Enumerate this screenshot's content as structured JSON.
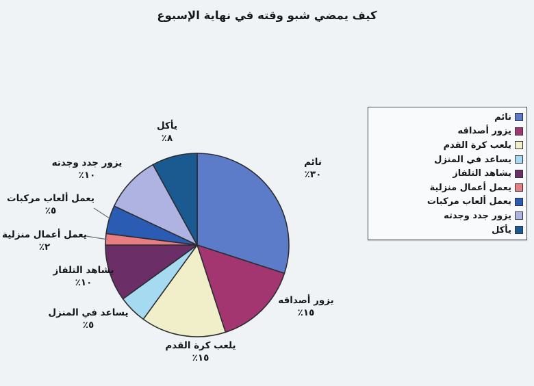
{
  "title": "كيف يمضي شبو وقته في نهاية الإسبوع",
  "page_background": "#eff3f5",
  "chart_data": {
    "type": "pie",
    "title": "كيف يمضي شبو وقته في نهاية الإسبوع",
    "legend_position": "right",
    "start_angle_deg": 0,
    "direction": "clockwise",
    "units": "percent",
    "slices": [
      {
        "label": "نائم",
        "value": 30,
        "pct_label": "٣٠٪",
        "color": "#5c7cca"
      },
      {
        "label": "يزور أصداقه",
        "value": 15,
        "pct_label": "١٥٪",
        "color": "#a33570"
      },
      {
        "label": "يلعب كرة القدم",
        "value": 15,
        "pct_label": "١٥٪",
        "color": "#f1efc9"
      },
      {
        "label": "يساعد في المنزل",
        "value": 5,
        "pct_label": "٥٪",
        "color": "#a6daf0"
      },
      {
        "label": "يشاهد التلفاز",
        "value": 10,
        "pct_label": "١٠٪",
        "color": "#6b2e66"
      },
      {
        "label": "يعمل أعمال منزلية",
        "value": 2,
        "pct_label": "٢٪",
        "color": "#e87e82"
      },
      {
        "label": "يعمل ألعاب مركبات",
        "value": 5,
        "pct_label": "٥٪",
        "color": "#2b5cb3"
      },
      {
        "label": "يزور جدد وجدته",
        "value": 10,
        "pct_label": "١٠٪",
        "color": "#aeb3e2"
      },
      {
        "label": "يأكل",
        "value": 8,
        "pct_label": "٨٪",
        "color": "#1a5a91"
      }
    ]
  }
}
